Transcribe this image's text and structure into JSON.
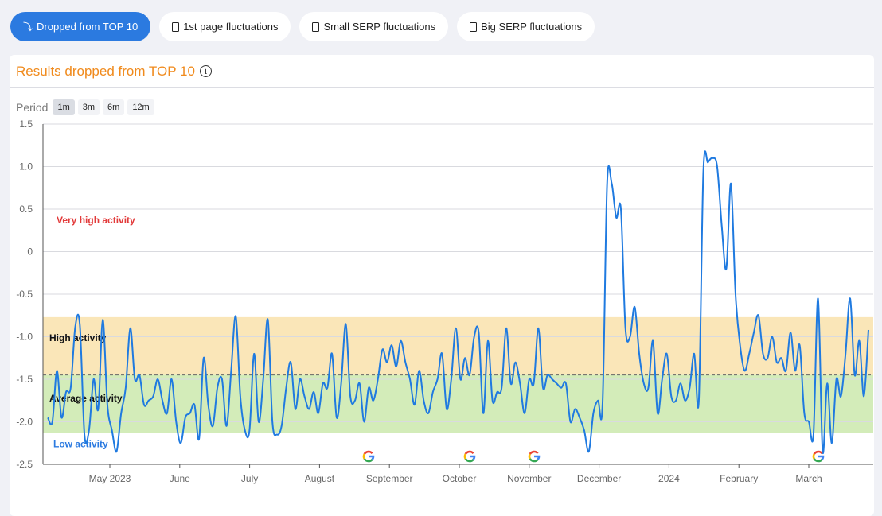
{
  "tabs": [
    {
      "label": "Dropped from TOP 10",
      "icon": "arrow-down-icon",
      "active": true
    },
    {
      "label": "1st page fluctuations",
      "icon": "document-icon",
      "active": false
    },
    {
      "label": "Small SERP fluctuations",
      "icon": "document-chart-icon",
      "active": false
    },
    {
      "label": "Big SERP fluctuations",
      "icon": "document-chart-icon",
      "active": false
    }
  ],
  "panel": {
    "title": "Results dropped from TOP 10",
    "info_icon": "info-icon"
  },
  "period": {
    "label": "Period",
    "options": [
      "1m",
      "3m",
      "6m",
      "12m"
    ],
    "selected": "1m"
  },
  "colors": {
    "accent": "#2b7ae0",
    "title": "#f08a1c",
    "high_band": "#fae6b8",
    "average_band": "#d3ecb9",
    "line": "#1f7ae0"
  },
  "chart_data": {
    "type": "line",
    "ylim": [
      -2.5,
      1.5
    ],
    "yticks": [
      "1.5",
      "1.0",
      "0.5",
      "0",
      "-0.5",
      "-1.0",
      "-1.5",
      "-2.0",
      "-2.5"
    ],
    "xlabels": [
      "May 2023",
      "June",
      "July",
      "August",
      "September",
      "October",
      "November",
      "December",
      "2024",
      "February",
      "March"
    ],
    "bands": [
      {
        "label": "Very high activity",
        "from": -0.77,
        "to": 1.5,
        "color": "none",
        "label_color": "#e23a3a"
      },
      {
        "label": "High activity",
        "from": -1.45,
        "to": -0.77,
        "color": "#fae6b8",
        "label_color": "#111111"
      },
      {
        "label": "Average activity",
        "from": -2.13,
        "to": -1.45,
        "color": "#d3ecb9",
        "label_color": "#111111"
      },
      {
        "label": "Low activity",
        "from": -2.5,
        "to": -2.13,
        "color": "none",
        "label_color": "#2b7ae0"
      }
    ],
    "dashed_line": -1.45,
    "google_updates": [
      "early September",
      "early October",
      "early November",
      "early March"
    ],
    "series": [
      {
        "values": [
          -1.95,
          -2.0,
          -1.4,
          -1.95,
          -1.65,
          -1.6,
          -0.88,
          -0.86,
          -2.15,
          -2.1,
          -1.5,
          -1.85,
          -0.8,
          -1.8,
          -2.1,
          -2.35,
          -1.9,
          -1.6,
          -0.9,
          -1.5,
          -1.45,
          -1.8,
          -1.75,
          -1.7,
          -1.5,
          -1.75,
          -1.9,
          -1.5,
          -2.0,
          -2.25,
          -1.95,
          -1.9,
          -1.8,
          -2.2,
          -1.25,
          -1.8,
          -2.05,
          -1.6,
          -1.5,
          -2.05,
          -1.4,
          -0.76,
          -1.7,
          -2.1,
          -2.1,
          -1.2,
          -2.0,
          -1.5,
          -0.8,
          -2.0,
          -2.15,
          -2.05,
          -1.6,
          -1.3,
          -1.85,
          -1.5,
          -1.7,
          -1.85,
          -1.65,
          -1.9,
          -1.55,
          -1.6,
          -1.2,
          -1.95,
          -1.55,
          -0.85,
          -1.7,
          -1.75,
          -1.55,
          -2.0,
          -1.6,
          -1.75,
          -1.5,
          -1.15,
          -1.3,
          -1.1,
          -1.35,
          -1.05,
          -1.3,
          -1.5,
          -1.8,
          -1.4,
          -1.75,
          -1.9,
          -1.65,
          -1.5,
          -1.2,
          -1.85,
          -1.5,
          -0.9,
          -1.5,
          -1.25,
          -1.45,
          -1.0,
          -0.95,
          -1.9,
          -1.05,
          -1.75,
          -1.65,
          -1.6,
          -0.9,
          -1.55,
          -1.3,
          -1.55,
          -1.9,
          -1.5,
          -1.55,
          -0.9,
          -1.6,
          -1.45,
          -1.5,
          -1.55,
          -1.6,
          -1.55,
          -2.0,
          -1.85,
          -1.95,
          -2.1,
          -2.35,
          -1.9,
          -1.75,
          -1.8,
          0.8,
          0.8,
          0.4,
          0.5,
          -0.9,
          -1.0,
          -0.65,
          -1.2,
          -1.55,
          -1.6,
          -1.05,
          -1.9,
          -1.5,
          -1.2,
          -1.7,
          -1.75,
          -1.55,
          -1.75,
          -1.6,
          -1.2,
          -1.75,
          0.95,
          1.05,
          1.1,
          1.0,
          0.3,
          -0.2,
          0.8,
          -0.5,
          -1.1,
          -1.4,
          -1.2,
          -0.95,
          -0.75,
          -1.2,
          -1.25,
          -1.0,
          -1.3,
          -1.25,
          -1.4,
          -0.95,
          -1.4,
          -1.1,
          -1.9,
          -2.0,
          -2.15,
          -0.55,
          -2.35,
          -1.55,
          -2.25,
          -1.5,
          -1.7,
          -1.2,
          -0.55,
          -1.45,
          -1.05,
          -1.7,
          -0.92
        ]
      }
    ]
  }
}
